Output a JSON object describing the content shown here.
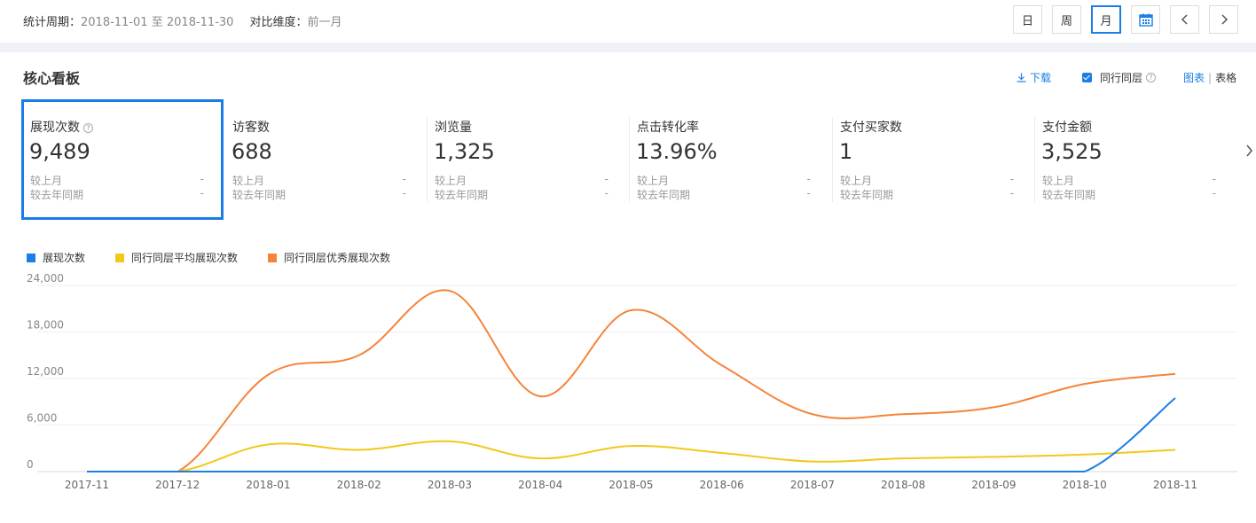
{
  "header": {
    "period_label": "统计周期：",
    "period_start": "2018-11-01",
    "period_to": "至",
    "period_end": "2018-11-30",
    "compare_label": "对比维度：",
    "compare_value": "前一月",
    "buttons": {
      "day": "日",
      "week": "周",
      "month": "月"
    },
    "active_button": "month",
    "calendar_icon": "calendar-icon",
    "prev_icon": "chevron-left-icon",
    "next_icon": "chevron-right-icon"
  },
  "panel": {
    "title": "核心看板",
    "download_label": "下载",
    "peer_label": "同行同层",
    "peer_checked": true,
    "view_chart": "图表",
    "view_sep": "|",
    "view_table": "表格"
  },
  "metrics": [
    {
      "label": "展现次数",
      "value": "9,489",
      "cmp1_label": "较上月",
      "cmp1_value": "-",
      "cmp2_label": "较去年同期",
      "cmp2_value": "-",
      "selected": true,
      "help": "?"
    },
    {
      "label": "访客数",
      "value": "688",
      "cmp1_label": "较上月",
      "cmp1_value": "-",
      "cmp2_label": "较去年同期",
      "cmp2_value": "-"
    },
    {
      "label": "浏览量",
      "value": "1,325",
      "cmp1_label": "较上月",
      "cmp1_value": "-",
      "cmp2_label": "较去年同期",
      "cmp2_value": "-"
    },
    {
      "label": "点击转化率",
      "value": "13.96%",
      "cmp1_label": "较上月",
      "cmp1_value": "-",
      "cmp2_label": "较去年同期",
      "cmp2_value": "-"
    },
    {
      "label": "支付买家数",
      "value": "1",
      "cmp1_label": "较上月",
      "cmp1_value": "-",
      "cmp2_label": "较去年同期",
      "cmp2_value": "-"
    },
    {
      "label": "支付金额",
      "value": "3,525",
      "cmp1_label": "较上月",
      "cmp1_value": "-",
      "cmp2_label": "较去年同期",
      "cmp2_value": "-"
    }
  ],
  "chart_data": {
    "type": "line",
    "x": [
      "2017-11",
      "2017-12",
      "2018-01",
      "2018-02",
      "2018-03",
      "2018-04",
      "2018-05",
      "2018-06",
      "2018-07",
      "2018-08",
      "2018-09",
      "2018-10",
      "2018-11"
    ],
    "yticks": [
      "0",
      "6,000",
      "12,000",
      "18,000",
      "24,000"
    ],
    "ylim": [
      0,
      24000
    ],
    "grid": true,
    "legend_position": "top-left",
    "series": [
      {
        "name": "展现次数",
        "color": "#1a7ee6",
        "values": [
          0,
          0,
          0,
          0,
          0,
          0,
          0,
          0,
          0,
          0,
          0,
          0,
          9489
        ]
      },
      {
        "name": "同行同层平均展现次数",
        "color": "#f2c81a",
        "values": [
          0,
          0,
          3500,
          2800,
          3900,
          1700,
          3300,
          2400,
          1300,
          1700,
          1900,
          2200,
          2800
        ]
      },
      {
        "name": "同行同层优秀展现次数",
        "color": "#f5843a",
        "values": [
          0,
          0,
          12500,
          15000,
          23300,
          9700,
          20800,
          13700,
          7400,
          7400,
          8300,
          11300,
          12600
        ]
      }
    ]
  }
}
